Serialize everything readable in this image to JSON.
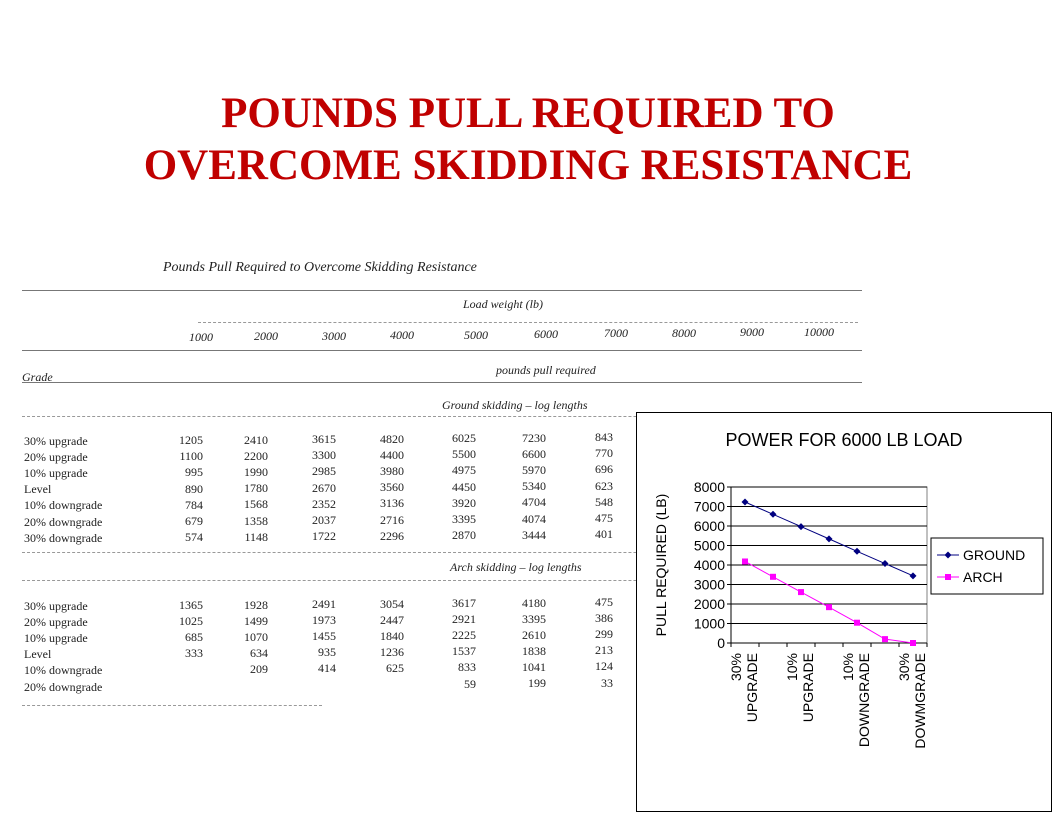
{
  "slide": {
    "title_line1": "POUNDS PULL REQUIRED TO",
    "title_line2": "OVERCOME SKIDDING RESISTANCE",
    "title_color": "#c00000"
  },
  "scanned_table": {
    "title": "Pounds Pull Required to Overcome Skidding Resistance",
    "load_header": "Load weight (lb)",
    "load_weights": [
      "1000",
      "2000",
      "3000",
      "4000",
      "5000",
      "6000",
      "7000",
      "8000",
      "9000",
      "10000"
    ],
    "grade_label": "Grade",
    "pull_header": "pounds pull required",
    "ground": {
      "label": "Ground skidding – log lengths",
      "rows": [
        {
          "grade": "30% upgrade",
          "values": [
            "1205",
            "2410",
            "3615",
            "4820",
            "6025",
            "7230",
            "843"
          ]
        },
        {
          "grade": "20% upgrade",
          "values": [
            "1100",
            "2200",
            "3300",
            "4400",
            "5500",
            "6600",
            "770"
          ]
        },
        {
          "grade": "10% upgrade",
          "values": [
            "995",
            "1990",
            "2985",
            "3980",
            "4975",
            "5970",
            "696"
          ]
        },
        {
          "grade": "Level",
          "values": [
            "890",
            "1780",
            "2670",
            "3560",
            "4450",
            "5340",
            "623"
          ]
        },
        {
          "grade": "10% downgrade",
          "values": [
            "784",
            "1568",
            "2352",
            "3136",
            "3920",
            "4704",
            "548"
          ]
        },
        {
          "grade": "20% downgrade",
          "values": [
            "679",
            "1358",
            "2037",
            "2716",
            "3395",
            "4074",
            "475"
          ]
        },
        {
          "grade": "30% downgrade",
          "values": [
            "574",
            "1148",
            "1722",
            "2296",
            "2870",
            "3444",
            "401"
          ]
        }
      ]
    },
    "arch": {
      "label": "Arch skidding – log lengths",
      "rows": [
        {
          "grade": "30% upgrade",
          "values": [
            "1365",
            "1928",
            "2491",
            "3054",
            "3617",
            "4180",
            "475"
          ]
        },
        {
          "grade": "20% upgrade",
          "values": [
            "1025",
            "1499",
            "1973",
            "2447",
            "2921",
            "3395",
            "386"
          ]
        },
        {
          "grade": "10% upgrade",
          "values": [
            "685",
            "1070",
            "1455",
            "1840",
            "2225",
            "2610",
            "299"
          ]
        },
        {
          "grade": "Level",
          "values": [
            "333",
            "634",
            "935",
            "1236",
            "1537",
            "1838",
            "213"
          ]
        },
        {
          "grade": "10% downgrade",
          "values": [
            "",
            "209",
            "414",
            "625",
            "833",
            "1041",
            "124"
          ]
        },
        {
          "grade": "20% downgrade",
          "values": [
            "",
            "",
            "",
            "",
            "59",
            "199",
            "33"
          ]
        }
      ]
    }
  },
  "chart_data": {
    "type": "line",
    "title": "POWER FOR 6000 LB LOAD",
    "ylabel": "PULL REQUIRED (LB)",
    "xlabel": "",
    "ylim": [
      0,
      8000
    ],
    "yticks": [
      "0",
      "1000",
      "2000",
      "3000",
      "4000",
      "5000",
      "6000",
      "7000",
      "8000"
    ],
    "x_labels": [
      {
        "line1": "30%",
        "line2": "UPGRADE"
      },
      {
        "line1": "10%",
        "line2": "UPGRADE"
      },
      {
        "line1": "10%",
        "line2": "DOWNGRADE"
      },
      {
        "line1": "30%",
        "line2": "DOWMGRADE"
      }
    ],
    "categories_count": 7,
    "grid": true,
    "legend_position": "right",
    "series": [
      {
        "name": "GROUND",
        "color": "#000080",
        "marker": "diamond",
        "values": [
          7230,
          6600,
          5970,
          5340,
          4704,
          4074,
          3444
        ]
      },
      {
        "name": "ARCH",
        "color": "#ff00ff",
        "marker": "square",
        "values": [
          4180,
          3395,
          2610,
          1838,
          1041,
          199,
          0
        ]
      }
    ]
  }
}
